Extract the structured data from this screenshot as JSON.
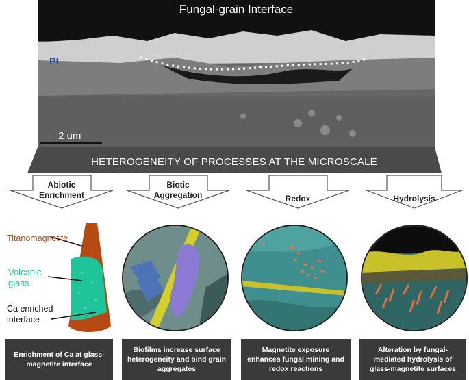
{
  "figure": {
    "sem_title": "Fungal-grain Interface",
    "pt_label": "Pt",
    "scale_label": "2 um",
    "banner_title": "HETEROGENEITY OF PROCESSES AT THE MICROSCALE",
    "processes": [
      {
        "label_line1": "Abiotic",
        "label_line2": "Enrichment",
        "caption": "Enrichment of Ca at glass-magnetite interface"
      },
      {
        "label_line1": "Biotic",
        "label_line2": "Aggregation",
        "caption": "Biofilms increase surface heterogeneity and bind grain aggregates"
      },
      {
        "label_line1": "Redox",
        "label_line2": "",
        "caption": "Magnetite exposure enhances fungal mining and redox reactions"
      },
      {
        "label_line1": "Hydrolysis",
        "label_line2": "",
        "caption": "Alteration by fungal-mediated hydrolysis of glass-magnetite surfaces"
      }
    ],
    "cone_labels": {
      "titanomagnetite": "Titanomagnetite",
      "volcanic_glass_line1": "Volcanic",
      "volcanic_glass_line2": "glass",
      "ca_line1": "Ca enriched",
      "ca_line2": "interface"
    },
    "colors": {
      "titanomagnetite": "#b54a14",
      "volcanic_glass": "#1fc49a",
      "banner": "#4a4a4a",
      "caption_bg": "#3a3a3a",
      "pt": "#2d4fa8"
    }
  }
}
